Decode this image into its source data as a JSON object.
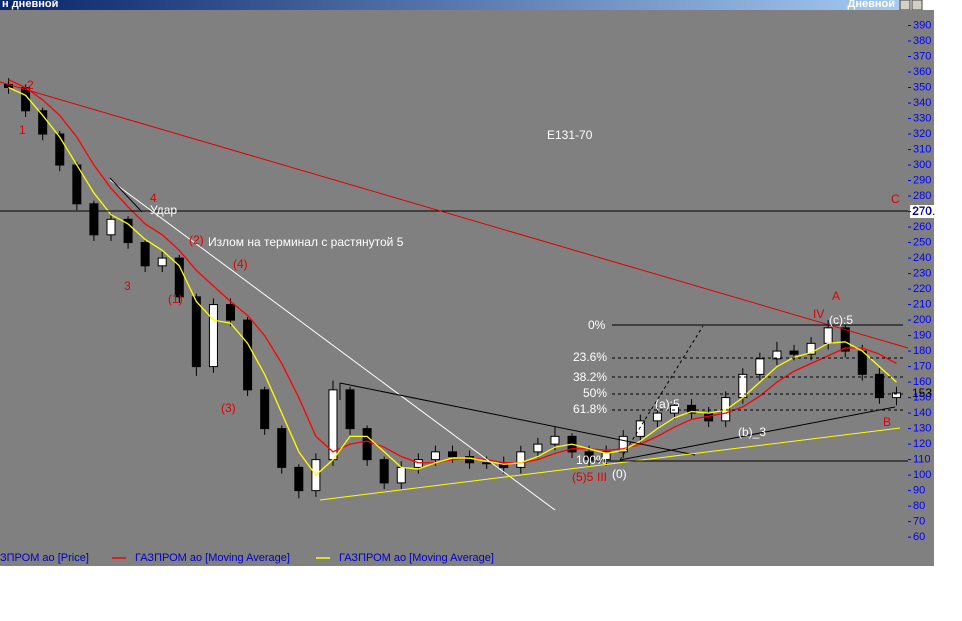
{
  "window": {
    "title_left": "н дневной",
    "title_right": "Дневной"
  },
  "chart_data": {
    "type": "candlestick",
    "categories": [
      null,
      null,
      null,
      null,
      null,
      null,
      null,
      null,
      null,
      null,
      null,
      null,
      null,
      null,
      null,
      null,
      null,
      null,
      null,
      null,
      null,
      null,
      null,
      null,
      null,
      null,
      null,
      null,
      null,
      null,
      null,
      null,
      null,
      null,
      null,
      null,
      null,
      null,
      null,
      null,
      null,
      null,
      null,
      null,
      null,
      null,
      null,
      null,
      null,
      null,
      null,
      null,
      null
    ],
    "ylim": [
      53,
      400
    ],
    "yticks": [
      60,
      70,
      80,
      90,
      100,
      110,
      120,
      130,
      140,
      150,
      160,
      170,
      180,
      190,
      200,
      210,
      220,
      230,
      240,
      250,
      260,
      270,
      280,
      290,
      300,
      310,
      320,
      330,
      340,
      350,
      360,
      370,
      380,
      390
    ],
    "series": [
      {
        "name": "ЗПРОМ ао [Price]",
        "color": "#000000",
        "open": [
          352,
          350,
          335,
          320,
          300,
          275,
          255,
          265,
          250,
          235,
          240,
          215,
          170,
          210,
          200,
          155,
          130,
          105,
          90,
          110,
          155,
          130,
          110,
          95,
          105,
          110,
          115,
          112,
          108,
          108,
          105,
          115,
          120,
          125,
          115,
          110,
          115,
          125,
          135,
          140,
          145,
          140,
          135,
          150,
          165,
          175,
          180,
          178,
          185,
          195,
          180,
          165,
          150
        ],
        "high": [
          356,
          352,
          337,
          322,
          302,
          277,
          269,
          267,
          252,
          244,
          242,
          217,
          214,
          214,
          202,
          157,
          132,
          107,
          114,
          161,
          157,
          132,
          112,
          109,
          114,
          119,
          119,
          116,
          112,
          112,
          119,
          124,
          131,
          127,
          119,
          119,
          129,
          139,
          144,
          149,
          149,
          144,
          154,
          169,
          179,
          186,
          184,
          189,
          200,
          197,
          184,
          169,
          157
        ],
        "low": [
          346,
          331,
          316,
          296,
          271,
          251,
          251,
          246,
          231,
          231,
          211,
          164,
          166,
          196,
          151,
          126,
          101,
          85,
          86,
          106,
          126,
          106,
          91,
          91,
          101,
          106,
          108,
          104,
          104,
          101,
          101,
          111,
          116,
          111,
          106,
          106,
          111,
          121,
          131,
          136,
          136,
          131,
          131,
          146,
          161,
          171,
          174,
          174,
          181,
          176,
          161,
          146,
          145
        ],
        "close": [
          350,
          335,
          320,
          300,
          275,
          255,
          265,
          250,
          235,
          240,
          215,
          170,
          210,
          200,
          155,
          130,
          105,
          90,
          110,
          155,
          130,
          110,
          95,
          105,
          110,
          115,
          112,
          108,
          108,
          105,
          115,
          120,
          125,
          115,
          110,
          115,
          125,
          135,
          140,
          145,
          140,
          135,
          150,
          165,
          175,
          180,
          178,
          185,
          195,
          180,
          165,
          150,
          153
        ]
      },
      {
        "name": "ГАЗПРОМ ао [Moving Average]",
        "color": "#ff0000",
        "values": [
          355,
          350,
          342,
          332,
          318,
          300,
          285,
          273,
          262,
          255,
          245,
          232,
          222,
          212,
          203,
          190,
          172,
          150,
          125,
          115,
          120,
          122,
          118,
          112,
          108,
          108,
          110,
          111,
          110,
          108,
          108,
          110,
          114,
          117,
          117,
          116,
          117,
          120,
          125,
          131,
          136,
          138,
          140,
          144,
          151,
          160,
          167,
          172,
          177,
          182,
          182,
          178,
          172
        ]
      },
      {
        "name": "ГАЗПРОМ ао [Moving Average]",
        "color": "#ffff00",
        "values": [
          350,
          345,
          332,
          318,
          300,
          282,
          268,
          262,
          252,
          245,
          235,
          212,
          200,
          198,
          185,
          165,
          140,
          115,
          100,
          110,
          125,
          125,
          115,
          105,
          104,
          108,
          111,
          111,
          109,
          107,
          108,
          112,
          118,
          120,
          117,
          114,
          116,
          122,
          130,
          137,
          141,
          140,
          142,
          150,
          160,
          170,
          176,
          179,
          185,
          186,
          180,
          170,
          160
        ]
      }
    ],
    "annotations": [
      "2",
      "1",
      "3",
      "4",
      "Удар",
      "(2)",
      "Излом на терминал с растянутой 5",
      "(4)",
      "(1)",
      "(3)",
      "E131-70",
      "C",
      "A",
      "IV",
      "(c):5",
      "0%",
      "23.6%",
      "38.2%",
      "50%",
      "61.8%",
      "(a):5",
      "(b)_3",
      "100%",
      "(5)5",
      "III",
      "(0)",
      "B"
    ],
    "level_label": "270.",
    "price_label": "153"
  }
}
